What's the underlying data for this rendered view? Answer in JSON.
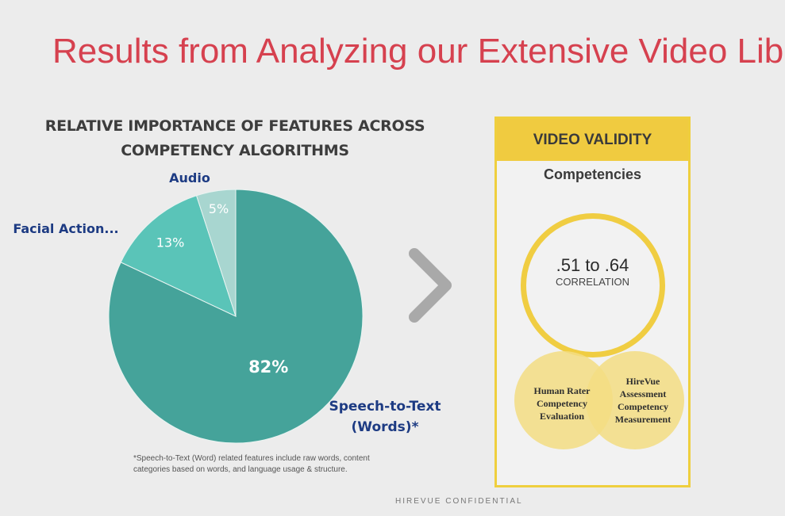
{
  "slide": {
    "title": "Results from Analyzing our Extensive Video Libr",
    "footer": "HIREVUE CONFIDENTIAL"
  },
  "chart_data": {
    "type": "pie",
    "title": "RELATIVE IMPORTANCE OF FEATURES ACROSS COMPETENCY ALGORITHMS",
    "title_lines": [
      "RELATIVE IMPORTANCE OF FEATURES ACROSS",
      "COMPETENCY ALGORITHMS"
    ],
    "slices": [
      {
        "label_lines": [
          "Speech-to-Text",
          "(Words)*"
        ],
        "value": 82,
        "display": "82%",
        "color": "#45a39a"
      },
      {
        "label_lines": [
          "Facial Action..."
        ],
        "value": 13,
        "display": "13%",
        "color": "#5ac4b8"
      },
      {
        "label_lines": [
          "Audio"
        ],
        "value": 5,
        "display": "5%",
        "color": "#a8d6d0"
      }
    ],
    "footnote_lines": [
      "*Speech-to-Text (Word) related features include raw words, content",
      "categories based on words, and language usage & structure."
    ]
  },
  "validity": {
    "header": "VIDEO VALIDITY",
    "competencies": "Competencies",
    "correlation_value": ".51 to .64",
    "correlation_label": "CORRELATION",
    "venn_left_lines": [
      "Human Rater",
      "Competency",
      "Evaluation"
    ],
    "venn_right_lines": [
      "HireVue",
      "Assessment",
      "Competency",
      "Measurement"
    ],
    "accent_color": "#f0cd42"
  },
  "icons": {
    "arrow": "chevron-right-icon"
  }
}
